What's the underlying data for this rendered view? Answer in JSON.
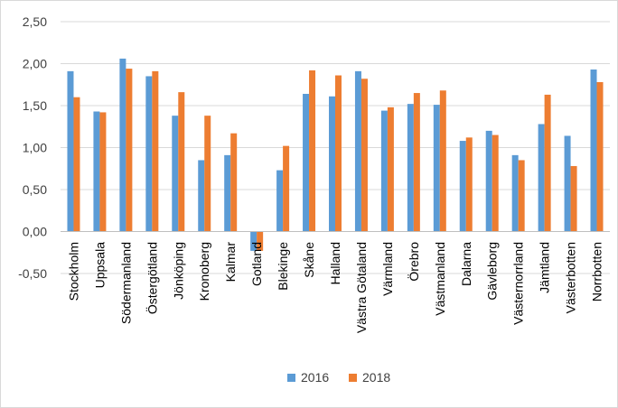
{
  "chart_data": {
    "type": "bar",
    "categories": [
      "Stockholm",
      "Uppsala",
      "Södermanland",
      "Östergötland",
      "Jönköping",
      "Kronoberg",
      "Kalmar",
      "Gotland",
      "Blekinge",
      "Skåne",
      "Halland",
      "Västra Götaland",
      "Värmland",
      "Örebro",
      "Västmanland",
      "Dalarna",
      "Gävleborg",
      "Västernorrland",
      "Jämtland",
      "Västerbotten",
      "Norrbotten"
    ],
    "series": [
      {
        "name": "2016",
        "color": "#5b9bd5",
        "values": [
          1.91,
          1.43,
          2.06,
          1.85,
          1.38,
          0.85,
          0.91,
          -0.23,
          0.73,
          1.64,
          1.61,
          1.91,
          1.44,
          1.52,
          1.51,
          1.08,
          1.2,
          0.91,
          1.28,
          1.14,
          1.93
        ]
      },
      {
        "name": "2018",
        "color": "#ed7d31",
        "values": [
          1.6,
          1.42,
          1.94,
          1.91,
          1.66,
          1.38,
          1.17,
          -0.23,
          1.02,
          1.92,
          1.86,
          1.82,
          1.48,
          1.65,
          1.68,
          1.12,
          1.15,
          0.85,
          1.63,
          0.78,
          1.78
        ]
      }
    ],
    "yticks": [
      "-0,50",
      "0,00",
      "0,50",
      "1,00",
      "1,50",
      "2,00",
      "2,50"
    ],
    "ylim": [
      -0.5,
      2.5
    ],
    "grid": true,
    "legend": "bottom"
  }
}
